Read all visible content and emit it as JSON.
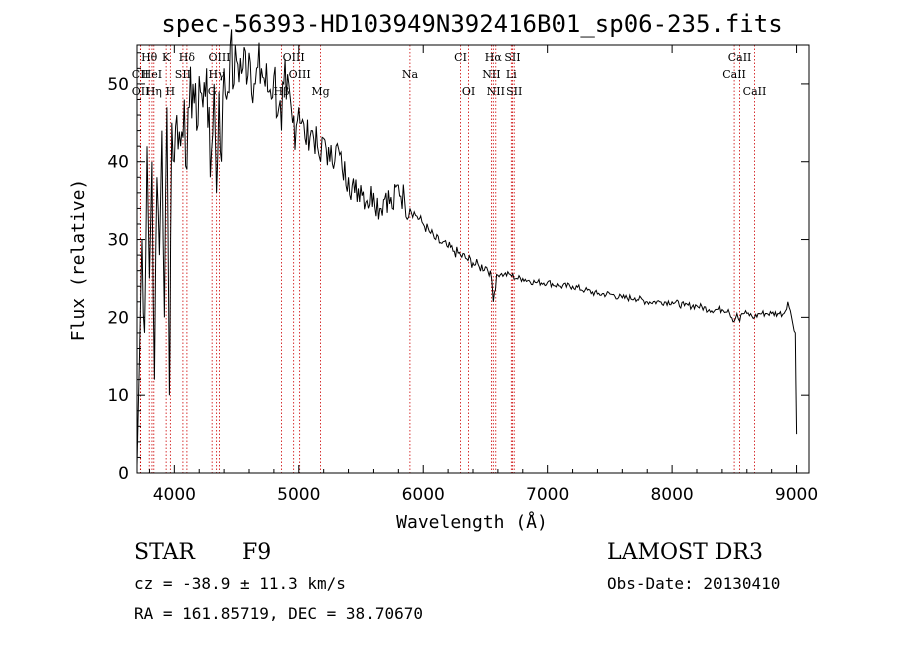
{
  "chart_data": {
    "type": "line",
    "title": "spec-56393-HD103949N392416B01_sp06-235.fits",
    "xlabel": "Wavelength (Å)",
    "ylabel": "Flux (relative)",
    "xlim": [
      3700,
      9100
    ],
    "ylim": [
      0,
      55
    ],
    "xticks": [
      4000,
      5000,
      6000,
      7000,
      8000,
      9000
    ],
    "yticks": [
      0,
      10,
      20,
      30,
      40,
      50
    ],
    "grid": false,
    "series": [
      {
        "name": "flux",
        "x": [
          3700,
          3720,
          3740,
          3760,
          3780,
          3800,
          3820,
          3840,
          3860,
          3880,
          3900,
          3920,
          3940,
          3960,
          3970,
          3980,
          4000,
          4020,
          4050,
          4080,
          4101,
          4120,
          4150,
          4180,
          4200,
          4230,
          4260,
          4290,
          4320,
          4340,
          4360,
          4380,
          4400,
          4420,
          4450,
          4480,
          4500,
          4550,
          4600,
          4650,
          4700,
          4750,
          4800,
          4840,
          4861,
          4880,
          4900,
          4950,
          5000,
          5050,
          5100,
          5150,
          5175,
          5200,
          5250,
          5300,
          5350,
          5400,
          5450,
          5500,
          5550,
          5600,
          5650,
          5700,
          5750,
          5800,
          5850,
          5893,
          5950,
          6000,
          6050,
          6100,
          6150,
          6200,
          6250,
          6300,
          6350,
          6400,
          6450,
          6500,
          6540,
          6563,
          6590,
          6620,
          6650,
          6700,
          6750,
          6800,
          6900,
          7000,
          7100,
          7200,
          7300,
          7400,
          7500,
          7600,
          7700,
          7800,
          7900,
          8000,
          8100,
          8200,
          8300,
          8400,
          8450,
          8498,
          8520,
          8542,
          8560,
          8600,
          8662,
          8700,
          8750,
          8800,
          8850,
          8900,
          8930,
          8960,
          8990,
          9000
        ],
        "values": [
          1,
          15,
          30,
          18,
          42,
          25,
          40,
          12,
          38,
          28,
          44,
          20,
          47,
          10,
          30,
          45,
          40,
          46,
          42,
          48,
          39,
          47,
          50,
          44,
          51,
          47,
          52,
          38,
          50,
          36,
          49,
          40,
          52,
          48,
          55,
          50,
          53,
          52,
          54,
          50,
          52,
          49,
          51,
          47,
          44,
          50,
          48,
          45,
          47,
          43,
          44,
          42,
          40,
          43,
          40,
          42,
          39,
          38,
          36,
          37,
          35,
          36,
          34,
          36,
          34,
          37,
          35,
          34,
          33,
          32,
          31,
          30,
          29.5,
          29,
          28.5,
          28,
          27.5,
          27,
          26.5,
          26.5,
          26,
          22,
          25.5,
          25.5,
          25.5,
          25.5,
          25,
          25,
          24.5,
          24.5,
          24,
          24,
          23.5,
          23,
          23,
          22.5,
          22.5,
          22,
          22,
          22,
          21.5,
          21.5,
          21,
          21,
          21,
          19.5,
          20.5,
          19.5,
          20.5,
          20.5,
          20,
          20.5,
          20.5,
          20.5,
          20.5,
          20.5,
          22,
          20,
          18,
          5
        ]
      }
    ],
    "lines": [
      {
        "label": "Hθ",
        "x": 3798,
        "row": 0
      },
      {
        "label": "K",
        "x": 3934,
        "row": 0
      },
      {
        "label": "Hδ",
        "x": 4101,
        "row": 0
      },
      {
        "label": "OIII",
        "x": 4363,
        "row": 0
      },
      {
        "label": "OIII",
        "x": 4959,
        "row": 0
      },
      {
        "label": "CI",
        "x": 6300,
        "row": 0
      },
      {
        "label": "Hα",
        "x": 6563,
        "row": 0
      },
      {
        "label": "SII",
        "x": 6717,
        "row": 0
      },
      {
        "label": "CaII",
        "x": 8542,
        "row": 0
      },
      {
        "label": "CII",
        "x": 3727,
        "row": 1
      },
      {
        "label": "HeI",
        "x": 3820,
        "row": 1
      },
      {
        "label": "SII",
        "x": 4069,
        "row": 1
      },
      {
        "label": "Hγ",
        "x": 4340,
        "row": 1
      },
      {
        "label": "OIII",
        "x": 5007,
        "row": 1
      },
      {
        "label": "Na",
        "x": 5893,
        "row": 1
      },
      {
        "label": "NII",
        "x": 6548,
        "row": 1
      },
      {
        "label": "Li",
        "x": 6708,
        "row": 1
      },
      {
        "label": "CaII",
        "x": 8498,
        "row": 1
      },
      {
        "label": "OII",
        "x": 3729,
        "row": 2
      },
      {
        "label": "Hη",
        "x": 3835,
        "row": 2
      },
      {
        "label": "H",
        "x": 3968,
        "row": 2
      },
      {
        "label": "G",
        "x": 4304,
        "row": 2
      },
      {
        "label": "Hβ",
        "x": 4861,
        "row": 2
      },
      {
        "label": "Mg",
        "x": 5175,
        "row": 2
      },
      {
        "label": "OI",
        "x": 6364,
        "row": 2
      },
      {
        "label": "NII",
        "x": 6583,
        "row": 2
      },
      {
        "label": "SII",
        "x": 6731,
        "row": 2
      },
      {
        "label": "CaII",
        "x": 8662,
        "row": 2
      }
    ],
    "colors": {
      "line": "#000000",
      "markers": "#cc0000",
      "axis": "#000000"
    }
  },
  "info": {
    "class": "STAR",
    "subclass": "F9",
    "survey": "LAMOST DR3",
    "cz": "cz = -38.9 ± 11.3 km/s",
    "obsdate": "Obs-Date: 20130410",
    "coords": "RA = 161.85719, DEC =  38.70670"
  }
}
